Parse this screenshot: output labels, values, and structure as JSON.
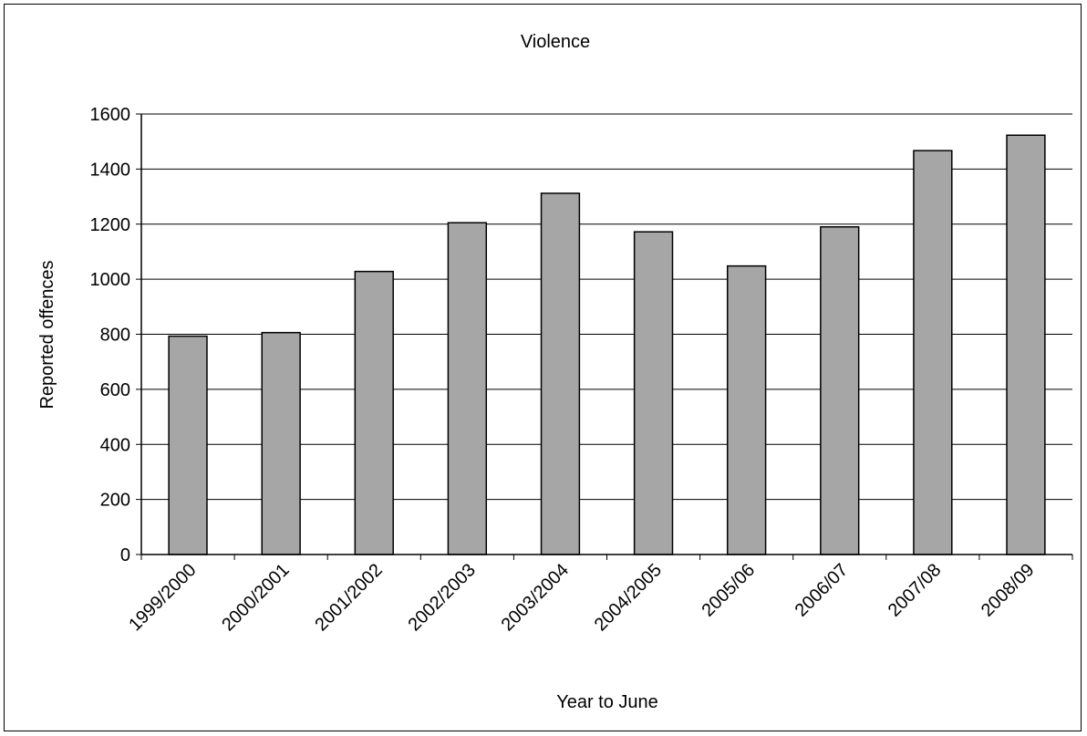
{
  "chart_data": {
    "type": "bar",
    "title": "Violence",
    "xlabel": "Year to June",
    "ylabel": "Reported offences",
    "categories": [
      "1999/2000",
      "2000/2001",
      "2001/2002",
      "2002/2003",
      "2003/2004",
      "2004/2005",
      "2005/06",
      "2006/07",
      "2007/08",
      "2008/09"
    ],
    "values": [
      793,
      806,
      1028,
      1205,
      1312,
      1172,
      1048,
      1190,
      1467,
      1523
    ],
    "ylim": [
      0,
      1600
    ],
    "yticks": [
      "0",
      "200",
      "400",
      "600",
      "800",
      "1000",
      "1200",
      "1400",
      "1600"
    ],
    "grid": true,
    "legend": "none",
    "colors": {
      "bar_fill": "#a6a6a6",
      "bar_stroke": "#000000",
      "grid": "#000000"
    }
  }
}
